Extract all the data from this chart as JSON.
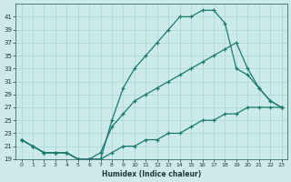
{
  "xlabel": "Humidex (Indice chaleur)",
  "bg_color": "#cceaea",
  "line_color": "#1a7a6e",
  "grid_color": "#b0d8d8",
  "line1_x": [
    0,
    1,
    2,
    3,
    4,
    5,
    6,
    7,
    8,
    9,
    10,
    11,
    12,
    13,
    14,
    15,
    16,
    17,
    18,
    19,
    20,
    21,
    22,
    23
  ],
  "line1_y": [
    22,
    21,
    20,
    20,
    20,
    19,
    19,
    19,
    25,
    30,
    33,
    35,
    37,
    39,
    41,
    41,
    42,
    42,
    40,
    33,
    32,
    30,
    28,
    27
  ],
  "line2_x": [
    0,
    1,
    2,
    3,
    4,
    5,
    6,
    7,
    8,
    9,
    10,
    11,
    12,
    13,
    14,
    15,
    16,
    17,
    18,
    19,
    20,
    21,
    22,
    23
  ],
  "line2_y": [
    22,
    21,
    20,
    20,
    20,
    19,
    19,
    20,
    24,
    26,
    28,
    29,
    30,
    31,
    32,
    33,
    34,
    35,
    36,
    37,
    33,
    30,
    28,
    27
  ],
  "line3_x": [
    0,
    1,
    2,
    3,
    4,
    5,
    6,
    7,
    8,
    9,
    10,
    11,
    12,
    13,
    14,
    15,
    16,
    17,
    18,
    19,
    20,
    21,
    22,
    23
  ],
  "line3_y": [
    22,
    21,
    20,
    20,
    20,
    19,
    19,
    19,
    20,
    21,
    21,
    22,
    22,
    23,
    23,
    24,
    25,
    25,
    26,
    26,
    27,
    27,
    27,
    27
  ],
  "ylim": [
    19,
    43
  ],
  "xlim": [
    -0.5,
    23.5
  ],
  "yticks": [
    19,
    21,
    23,
    25,
    27,
    29,
    31,
    33,
    35,
    37,
    39,
    41
  ],
  "xticks": [
    0,
    1,
    2,
    3,
    4,
    5,
    6,
    7,
    8,
    9,
    10,
    11,
    12,
    13,
    14,
    15,
    16,
    17,
    18,
    19,
    20,
    21,
    22,
    23
  ]
}
